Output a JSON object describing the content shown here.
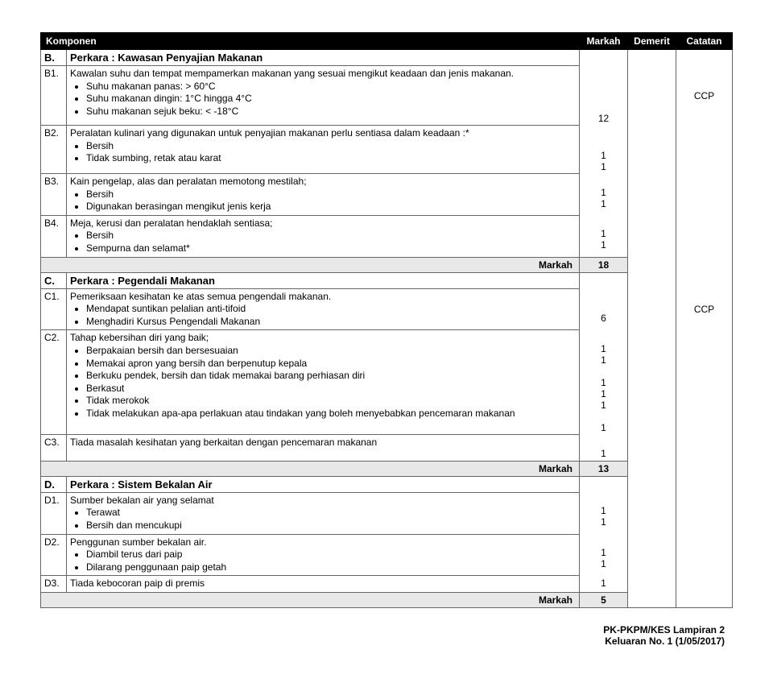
{
  "header": {
    "col1": "Komponen",
    "col2": "Markah",
    "col3": "Demerit",
    "col4": "Catatan"
  },
  "sections": {
    "B": {
      "code": "B.",
      "title": "Perkara :  Kawasan Penyajian Makanan",
      "subtotal_label": "Markah",
      "subtotal_value": "18",
      "catatan": "CCP",
      "rows": [
        {
          "code": "B1.",
          "text": "Kawalan suhu dan tempat mempamerkan makanan yang sesuai mengikut keadaan dan jenis makanan.",
          "bullets": [
            "Suhu makanan panas:  > 60°C",
            "Suhu makanan dingin: 1°C hingga 4°C",
            "Suhu makanan sejuk beku: < -18°C"
          ],
          "markah": [
            "",
            "",
            "12"
          ]
        },
        {
          "code": "B2.",
          "text": "Peralatan kulinari yang digunakan untuk penyajian makanan perlu sentiasa dalam keadaan :*",
          "bullets": [
            "Bersih",
            "Tidak sumbing, retak atau karat"
          ],
          "markah": [
            "1",
            "1"
          ]
        },
        {
          "code": "B3.",
          "text": "Kain pengelap, alas dan peralatan memotong mestilah;",
          "bullets": [
            "Bersih",
            "Digunakan berasingan mengikut jenis kerja"
          ],
          "markah": [
            "1",
            "1"
          ]
        },
        {
          "code": "B4.",
          "text": "Meja, kerusi dan peralatan hendaklah sentiasa;",
          "bullets": [
            "Bersih",
            "Sempurna dan selamat*"
          ],
          "markah": [
            "1",
            "1"
          ]
        }
      ]
    },
    "C": {
      "code": "C.",
      "title": "Perkara :  Pegendali Makanan",
      "subtotal_label": "Markah",
      "subtotal_value": "13",
      "catatan": "CCP",
      "rows": [
        {
          "code": "C1.",
          "text": "Pemeriksaan kesihatan ke atas semua pengendali makanan.",
          "bullets": [
            "Mendapat suntikan pelalian anti-tifoid",
            "Menghadiri Kursus Pengendali Makanan"
          ],
          "markah": [
            "",
            "6"
          ]
        },
        {
          "code": "C2.",
          "text": "Tahap kebersihan diri yang baik;",
          "bullets": [
            "Berpakaian bersih dan bersesuaian",
            "Memakai apron yang bersih dan berpenutup kepala",
            "Berkuku pendek, bersih dan tidak memakai barang perhiasan diri",
            "Berkasut",
            "Tidak merokok",
            "Tidak melakukan apa-apa perlakuan atau tindakan yang boleh menyebabkan pencemaran makanan"
          ],
          "markah": [
            "1",
            "1",
            "1",
            "1",
            "1",
            "1"
          ]
        },
        {
          "code": "C3.",
          "text": "Tiada masalah kesihatan yang berkaitan dengan pencemaran makanan",
          "bullets": [],
          "markah_single": "1"
        }
      ]
    },
    "D": {
      "code": "D.",
      "title": "Perkara :  Sistem Bekalan Air",
      "subtotal_label": "Markah",
      "subtotal_value": "5",
      "rows": [
        {
          "code": "D1.",
          "text": "Sumber bekalan air yang selamat",
          "bullets": [
            "Terawat",
            "Bersih dan mencukupi"
          ],
          "markah": [
            "1",
            "1"
          ]
        },
        {
          "code": "D2.",
          "text": "Penggunan sumber bekalan air.",
          "bullets": [
            "Diambil terus dari paip",
            "Dilarang penggunaan paip getah"
          ],
          "markah": [
            "1",
            "1"
          ]
        },
        {
          "code": "D3.",
          "text": "Tiada kebocoran paip di premis",
          "bullets": [],
          "markah_single": "1"
        }
      ]
    }
  },
  "footer": {
    "line1": "PK-PKPM/KES Lampiran 2",
    "line2": "Keluaran No. 1 (1/05/2017)"
  }
}
